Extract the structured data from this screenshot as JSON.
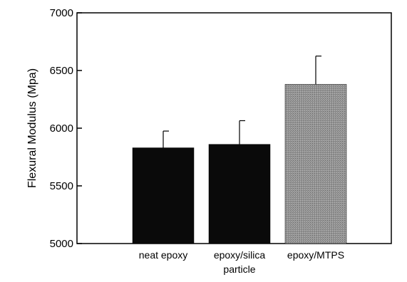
{
  "chart_data": {
    "type": "bar",
    "ylabel": "Flexural Modulus (Mpa)",
    "ylim": [
      5000,
      7000
    ],
    "yticks": [
      5000,
      5500,
      6000,
      6500,
      7000
    ],
    "categories": [
      {
        "lines": [
          "neat epoxy"
        ]
      },
      {
        "lines": [
          "epoxy/silica",
          "particle"
        ]
      },
      {
        "lines": [
          "epoxy/MTPS"
        ]
      }
    ],
    "values": [
      5830,
      5860,
      6380
    ],
    "errors": [
      145,
      205,
      245
    ],
    "colors": [
      "#0a0a0a",
      "#0a0a0a",
      "#8a8a8a"
    ],
    "grid": false,
    "legend": "none"
  }
}
